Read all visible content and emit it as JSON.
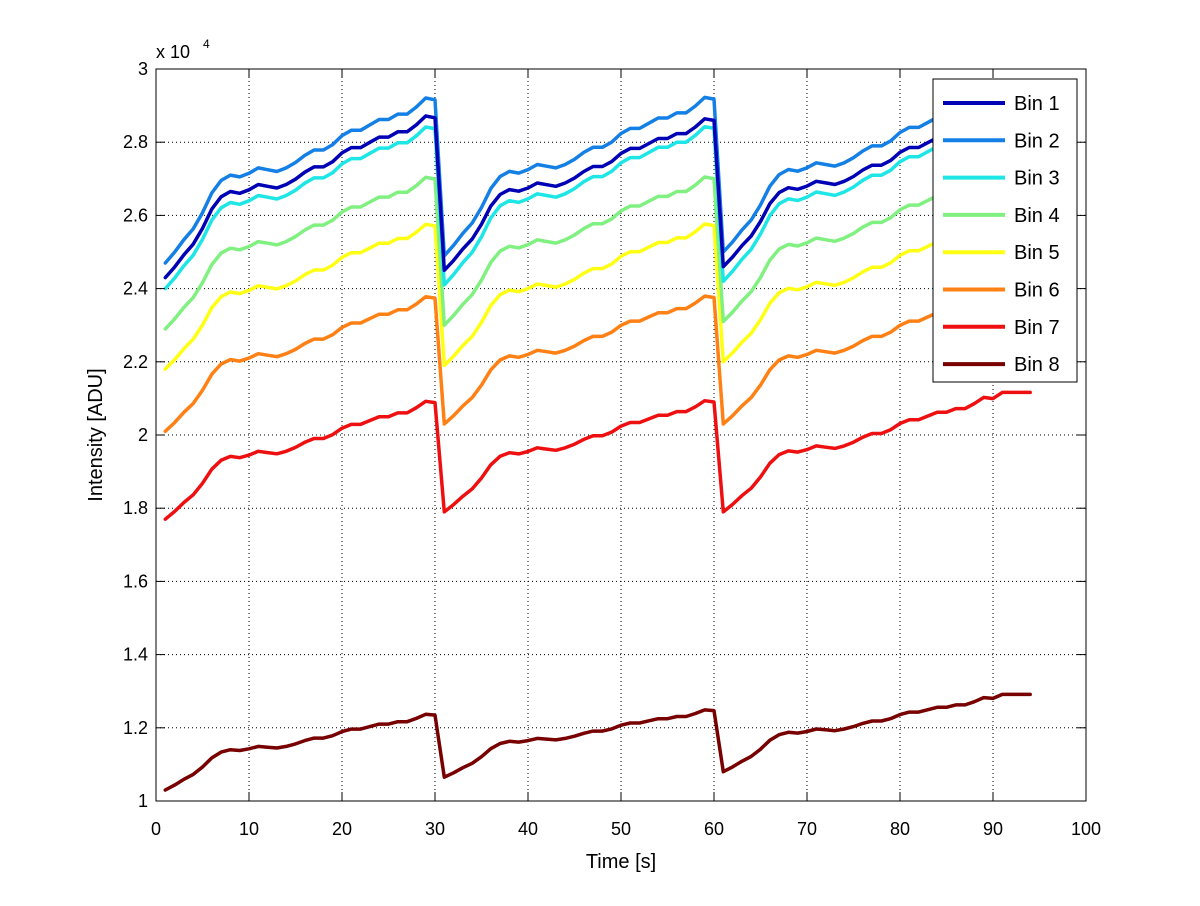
{
  "chart_data": {
    "type": "line",
    "title": "",
    "xlabel": "Time [s]",
    "ylabel": "Intensity [ADU]",
    "y_multiplier_label": "x 10",
    "y_multiplier_exponent": "4",
    "xlim": [
      0,
      100
    ],
    "ylim": [
      1,
      3
    ],
    "x_ticks": [
      0,
      10,
      20,
      30,
      40,
      50,
      60,
      70,
      80,
      90,
      100
    ],
    "x_tick_labels": [
      "0",
      "10",
      "20",
      "30",
      "40",
      "50",
      "60",
      "70",
      "80",
      "90",
      "100"
    ],
    "y_ticks": [
      1,
      1.2,
      1.4,
      1.6,
      1.8,
      2,
      2.2,
      2.4,
      2.6,
      2.8,
      3
    ],
    "y_tick_labels": [
      "1",
      "1.2",
      "1.4",
      "1.6",
      "1.8",
      "2",
      "2.2",
      "2.4",
      "2.6",
      "2.8",
      "3"
    ],
    "grid": true,
    "legend_position": "top-right",
    "period_s": 30,
    "t_end_s": 94,
    "cycle_shape": [
      0.0,
      0.06,
      0.13,
      0.19,
      0.28,
      0.39,
      0.46,
      0.49,
      0.48,
      0.5,
      0.53,
      0.52,
      0.51,
      0.53,
      0.56,
      0.6,
      0.63,
      0.63,
      0.66,
      0.71,
      0.74,
      0.74,
      0.77,
      0.8,
      0.8,
      0.83,
      0.83,
      0.87,
      0.92,
      0.91,
      0.96
    ],
    "series": [
      {
        "name": "Bin 1",
        "color": "#0000b4",
        "base": [
          2.43,
          2.45,
          2.46
        ],
        "top": [
          2.91,
          2.9,
          2.9
        ]
      },
      {
        "name": "Bin 2",
        "color": "#1480e6",
        "base": [
          2.47,
          2.49,
          2.5
        ],
        "top": [
          2.96,
          2.96,
          2.96
        ]
      },
      {
        "name": "Bin 3",
        "color": "#1ee6e6",
        "base": [
          2.4,
          2.41,
          2.42
        ],
        "top": [
          2.88,
          2.88,
          2.88
        ]
      },
      {
        "name": "Bin 4",
        "color": "#80f080",
        "base": [
          2.29,
          2.3,
          2.31
        ],
        "top": [
          2.74,
          2.74,
          2.74
        ]
      },
      {
        "name": "Bin 5",
        "color": "#ffff14",
        "base": [
          2.18,
          2.19,
          2.2
        ],
        "top": [
          2.61,
          2.61,
          2.61
        ]
      },
      {
        "name": "Bin 6",
        "color": "#ff8014",
        "base": [
          2.01,
          2.03,
          2.03
        ],
        "top": [
          2.41,
          2.41,
          2.41
        ]
      },
      {
        "name": "Bin 7",
        "color": "#ee1010",
        "base": [
          1.77,
          1.79,
          1.79
        ],
        "top": [
          2.12,
          2.12,
          2.13
        ]
      },
      {
        "name": "Bin 8",
        "color": "#780000",
        "base": [
          1.03,
          1.065,
          1.08
        ],
        "top": [
          1.255,
          1.265,
          1.3
        ]
      }
    ]
  }
}
